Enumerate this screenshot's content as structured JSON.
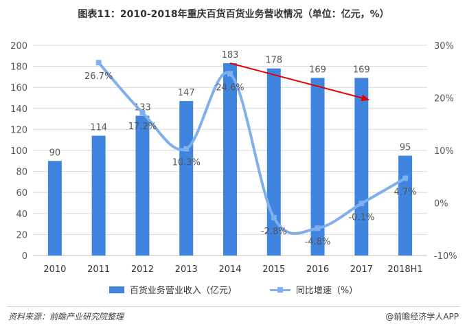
{
  "title": "图表11：2010-2018年重庆百货百货业务营收情况（单位：亿元，%）",
  "source": "资料来源：前瞻产业研究院整理",
  "brand": "@前瞻经济学人APP",
  "colors": {
    "bar": "#3f85df",
    "line": "#7fb0ec",
    "arrow": "#e60000",
    "text": "#555555",
    "grid": "#d9d9d9"
  },
  "chart_data": {
    "type": "bar+line",
    "categories": [
      "2010",
      "2011",
      "2012",
      "2013",
      "2014",
      "2015",
      "2016",
      "2017",
      "2018H1"
    ],
    "ylim": [
      0,
      200
    ],
    "y_ticks": [
      "0",
      "20",
      "40",
      "60",
      "80",
      "100",
      "120",
      "140",
      "160",
      "180",
      "200"
    ],
    "y2lim": [
      -10,
      30
    ],
    "y2_ticks": [
      "-10%",
      "0%",
      "10%",
      "20%",
      "30%"
    ],
    "series": [
      {
        "name": "百货业务营业收入（亿元）",
        "type": "bar",
        "axis": "left",
        "values": [
          90,
          114,
          133,
          147,
          183,
          178,
          169,
          169,
          95
        ],
        "labels": [
          "90",
          "114",
          "133",
          "147",
          "183",
          "178",
          "169",
          "169",
          "95"
        ]
      },
      {
        "name": "同比增速（%）",
        "type": "line",
        "axis": "right",
        "values": [
          null,
          26.7,
          17.2,
          10.3,
          24.6,
          -2.8,
          -4.8,
          -0.1,
          4.7
        ],
        "labels": [
          null,
          "26.7%",
          "17.2%",
          "10.3%",
          "24.6%",
          "-2.8%",
          "-4.8%",
          "-0.1%",
          "4.7%"
        ]
      }
    ],
    "annotation": {
      "type": "arrow",
      "from": {
        "category": "2014",
        "value": 183
      },
      "to": {
        "category": "2017",
        "value": 148
      }
    },
    "grid": true,
    "legend": "bottom"
  }
}
